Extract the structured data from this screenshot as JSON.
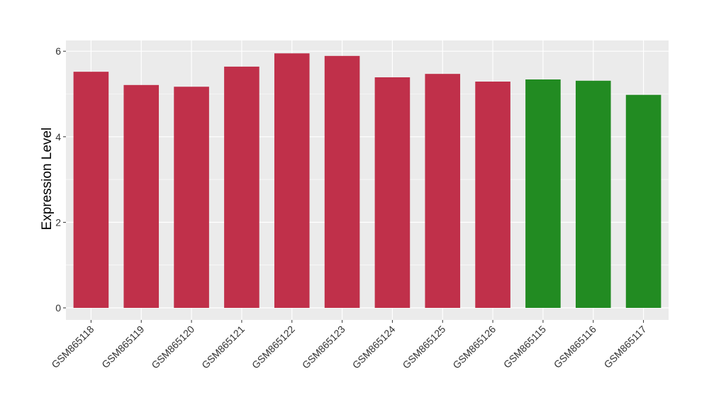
{
  "chart_data": {
    "type": "bar",
    "title": "",
    "xlabel": "",
    "ylabel": "Expression Level",
    "ylim": [
      -0.3,
      6.25
    ],
    "yticks": [
      0,
      2,
      4,
      6
    ],
    "grid": true,
    "categories": [
      "GSM865118",
      "GSM865119",
      "GSM865120",
      "GSM865121",
      "GSM865122",
      "GSM865123",
      "GSM865124",
      "GSM865125",
      "GSM865126",
      "GSM865115",
      "GSM865116",
      "GSM865117"
    ],
    "values": [
      5.52,
      5.21,
      5.17,
      5.64,
      5.95,
      5.89,
      5.39,
      5.47,
      5.29,
      5.34,
      5.31,
      4.98
    ],
    "bar_colors": [
      "#C0304A",
      "#C0304A",
      "#C0304A",
      "#C0304A",
      "#C0304A",
      "#C0304A",
      "#C0304A",
      "#C0304A",
      "#C0304A",
      "#228B22",
      "#228B22",
      "#228B22"
    ],
    "panel_background": "#EBEBEB"
  }
}
